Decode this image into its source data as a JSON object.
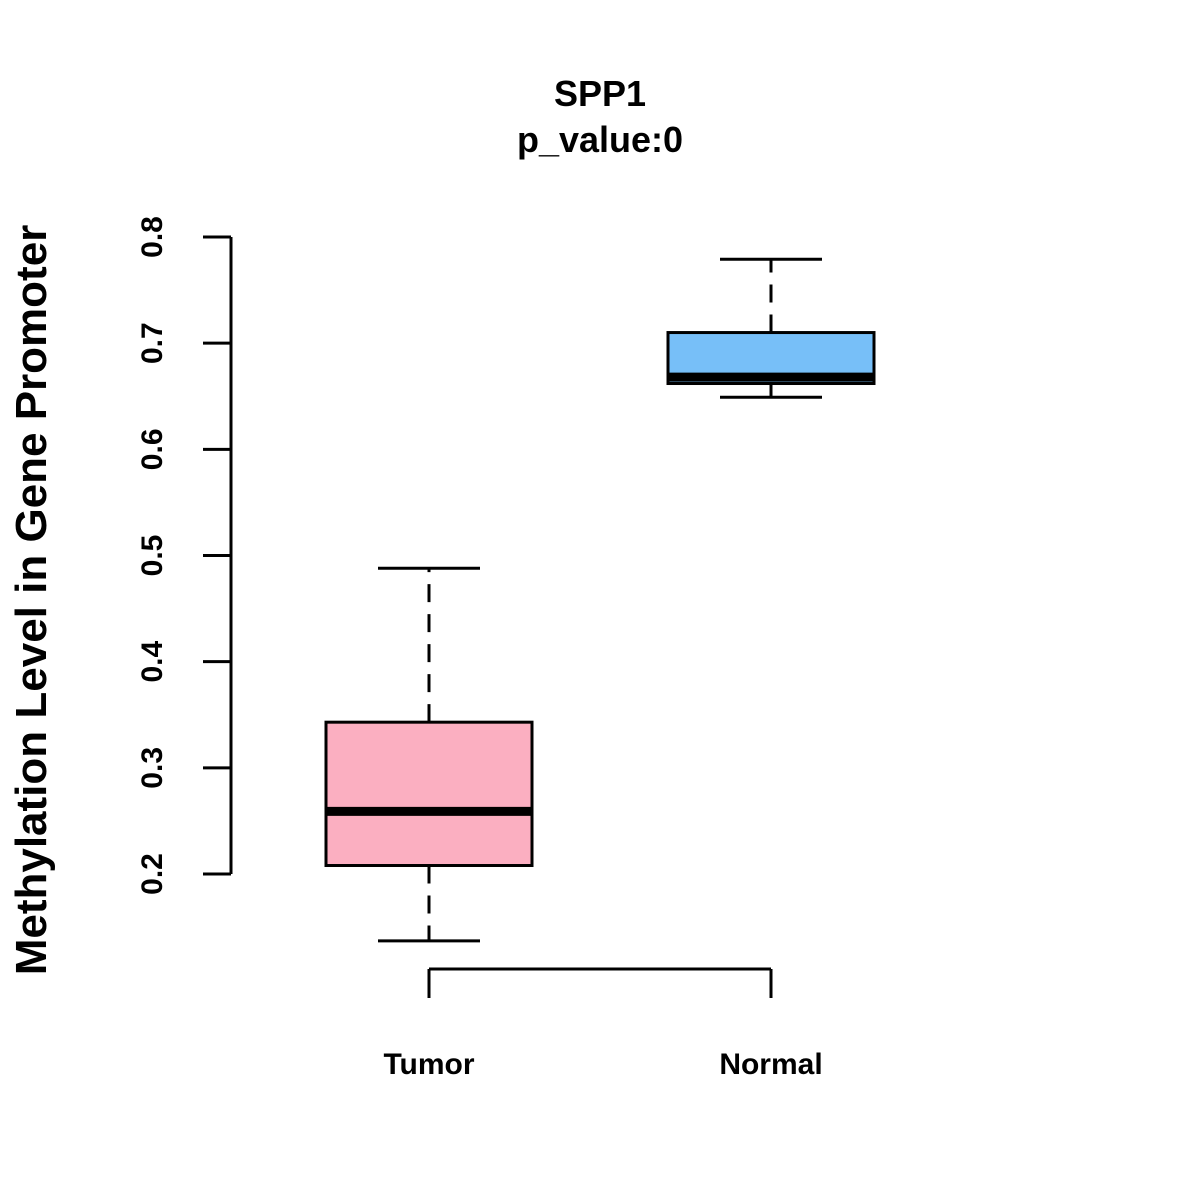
{
  "chart_data": {
    "type": "boxplot",
    "title": "SPP1",
    "subtitle": "p_value:0",
    "xlabel": "",
    "ylabel": "Methylation Level in Gene Promoter",
    "ylim": [
      0.2,
      0.8
    ],
    "yticks": [
      "0.2",
      "0.3",
      "0.4",
      "0.5",
      "0.6",
      "0.7",
      "0.8"
    ],
    "categories": [
      "Tumor",
      "Normal"
    ],
    "series": [
      {
        "name": "Tumor",
        "color": "#FBAFC1",
        "whisker_low": 0.137,
        "q1": 0.208,
        "median": 0.259,
        "q3": 0.343,
        "whisker_high": 0.488
      },
      {
        "name": "Normal",
        "color": "#77BFF8",
        "whisker_low": 0.649,
        "q1": 0.662,
        "median": 0.668,
        "q3": 0.71,
        "whisker_high": 0.779
      }
    ],
    "grid": false,
    "legend": "none"
  }
}
